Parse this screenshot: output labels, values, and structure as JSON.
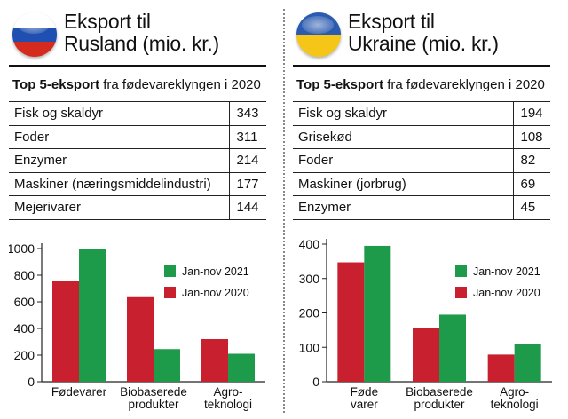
{
  "colors": {
    "red": "#c8202f",
    "green": "#1d9a4a",
    "russia_flag": [
      "#ffffff",
      "#1f4fb0",
      "#d52b1e"
    ],
    "ukraine_flag": [
      "#2a5bb0",
      "#f5c518"
    ]
  },
  "russia": {
    "title_line1": "Eksport til",
    "title_line2": "Rusland (mio. kr.)",
    "subtitle_bold": "Top 5-eksport",
    "subtitle_rest": " fra fødevareklyngen i 2020",
    "rows": [
      {
        "label": "Fisk og skaldyr",
        "value": "343"
      },
      {
        "label": "Foder",
        "value": "311"
      },
      {
        "label": "Enzymer",
        "value": "214"
      },
      {
        "label": "Maskiner (næringsmiddelindustri)",
        "value": "177"
      },
      {
        "label": "Mejerivarer",
        "value": "144"
      }
    ]
  },
  "ukraine": {
    "title_line1": "Eksport til",
    "title_line2": "Ukraine (mio. kr.)",
    "subtitle_bold": "Top 5-eksport",
    "subtitle_rest": " fra fødevareklyngen i 2020",
    "rows": [
      {
        "label": "Fisk og skaldyr",
        "value": "194"
      },
      {
        "label": "Grisekød",
        "value": "108"
      },
      {
        "label": "Foder",
        "value": "82"
      },
      {
        "label": "Maskiner (jorbrug)",
        "value": "69"
      },
      {
        "label": "Enzymer",
        "value": "45"
      }
    ]
  },
  "chart_data": [
    {
      "type": "bar",
      "id": "russia",
      "categories": [
        [
          "Fødevarer"
        ],
        [
          "Biobaserede",
          "produkter"
        ],
        [
          "Agro-",
          "teknologi"
        ]
      ],
      "series": [
        {
          "name": "Jan-nov 2020",
          "color": "red",
          "values": [
            760,
            635,
            320
          ]
        },
        {
          "name": "Jan-nov 2021",
          "color": "green",
          "values": [
            995,
            245,
            210
          ]
        }
      ],
      "legend_order": [
        "Jan-nov 2021",
        "Jan-nov 2020"
      ],
      "legend_position": "top-right",
      "yticks": [
        "0",
        "200",
        "400",
        "600",
        "800",
        "1000"
      ],
      "ylim": [
        0,
        1000
      ],
      "xlabel": "",
      "ylabel": "",
      "title": ""
    },
    {
      "type": "bar",
      "id": "ukraine",
      "categories": [
        [
          "Føde",
          "varer"
        ],
        [
          "Biobaserede",
          "produkter"
        ],
        [
          "Agro-",
          "teknologi"
        ]
      ],
      "series": [
        {
          "name": "Jan-nov 2020",
          "color": "red",
          "values": [
            347,
            157,
            79
          ]
        },
        {
          "name": "Jan-nov 2021",
          "color": "green",
          "values": [
            395,
            195,
            110
          ]
        }
      ],
      "legend_order": [
        "Jan-nov 2021",
        "Jan-nov 2020"
      ],
      "legend_position": "top-right",
      "yticks": [
        "0",
        "100",
        "200",
        "300",
        "400"
      ],
      "ylim": [
        0,
        400
      ],
      "xlabel": "",
      "ylabel": "",
      "title": ""
    }
  ]
}
